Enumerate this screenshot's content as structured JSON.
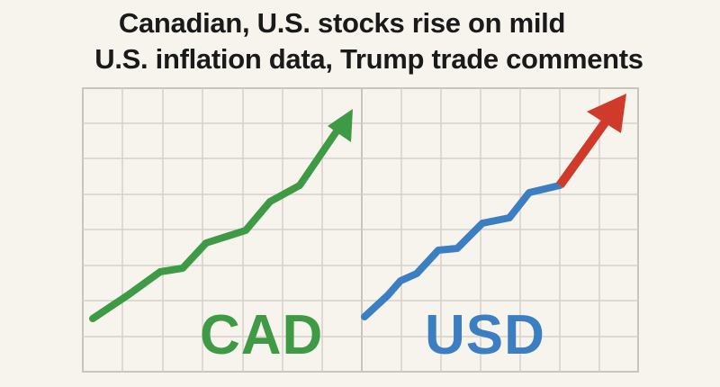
{
  "headline": {
    "line1": "Canadian, U.S. stocks rise on mild",
    "line2": "U.S. inflation data, Trump trade comments"
  },
  "panels": {
    "left_label": "CAD",
    "right_label": "USD"
  },
  "colors": {
    "background": "#f7f4ee",
    "grid": "#d3cfc8",
    "cad_green": "#3f9a45",
    "usd_blue": "#3b7fc2",
    "arrow_red": "#d03a2a"
  },
  "icons": [
    "up-trend-arrow-icon"
  ]
}
